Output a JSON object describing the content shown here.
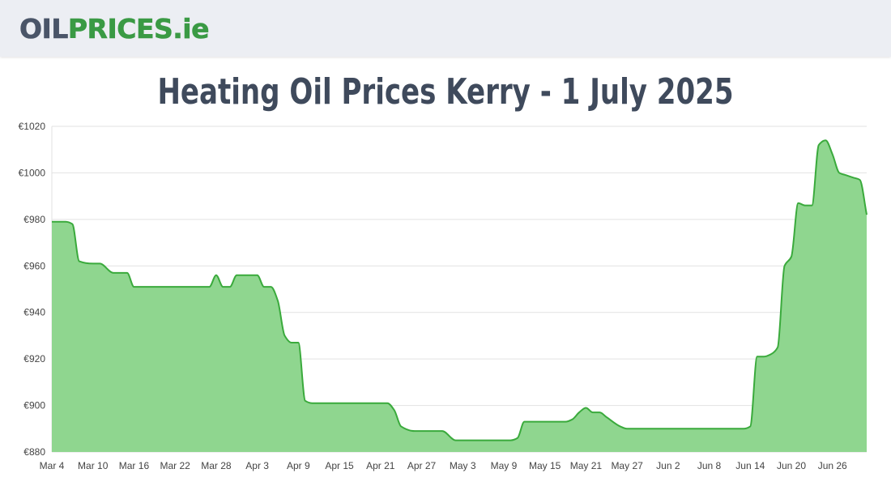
{
  "header": {
    "logo_part1": "OIL",
    "logo_part2": "PRICES",
    "logo_part3": ".ie"
  },
  "page_title": "Heating Oil Prices Kerry - 1 July 2025",
  "colors": {
    "line": "#3aaa3c",
    "fill": "#8fd68f",
    "grid": "#e2e2e2",
    "brand_gray": "#4a5568",
    "brand_green": "#3a9a44"
  },
  "chart_data": {
    "type": "area",
    "title": "Heating Oil Prices Kerry - 1 July 2025",
    "xlabel": "",
    "ylabel": "",
    "ylim": [
      880,
      1020
    ],
    "y_ticks": [
      880,
      900,
      920,
      940,
      960,
      980,
      1000,
      1020
    ],
    "y_tick_labels": [
      "€880",
      "€900",
      "€920",
      "€940",
      "€960",
      "€980",
      "€1000",
      "€1020"
    ],
    "x_ticks": [
      "Mar 4",
      "Mar 10",
      "Mar 16",
      "Mar 22",
      "Mar 28",
      "Apr 3",
      "Apr 9",
      "Apr 15",
      "Apr 21",
      "Apr 27",
      "May 3",
      "May 9",
      "May 15",
      "May 21",
      "May 27",
      "Jun 2",
      "Jun 8",
      "Jun 14",
      "Jun 20",
      "Jun 26"
    ],
    "grid": true,
    "series": [
      {
        "x": [
          "2025-03-04",
          "2025-03-05",
          "2025-03-06",
          "2025-03-07",
          "2025-03-08",
          "2025-03-10",
          "2025-03-11",
          "2025-03-13",
          "2025-03-14",
          "2025-03-15",
          "2025-03-16",
          "2025-03-20",
          "2025-03-25",
          "2025-03-27",
          "2025-03-28",
          "2025-03-29",
          "2025-03-30",
          "2025-03-31",
          "2025-04-01",
          "2025-04-03",
          "2025-04-04",
          "2025-04-05",
          "2025-04-06",
          "2025-04-07",
          "2025-04-08",
          "2025-04-09",
          "2025-04-10",
          "2025-04-11",
          "2025-04-13",
          "2025-04-15",
          "2025-04-20",
          "2025-04-22",
          "2025-04-23",
          "2025-04-24",
          "2025-04-26",
          "2025-04-28",
          "2025-04-29",
          "2025-04-30",
          "2025-05-02",
          "2025-05-03",
          "2025-05-05",
          "2025-05-10",
          "2025-05-11",
          "2025-05-12",
          "2025-05-13",
          "2025-05-15",
          "2025-05-18",
          "2025-05-19",
          "2025-05-20",
          "2025-05-21",
          "2025-05-22",
          "2025-05-23",
          "2025-05-24",
          "2025-05-26",
          "2025-05-27",
          "2025-06-02",
          "2025-06-10",
          "2025-06-12",
          "2025-06-13",
          "2025-06-14",
          "2025-06-15",
          "2025-06-16",
          "2025-06-17",
          "2025-06-18",
          "2025-06-19",
          "2025-06-20",
          "2025-06-21",
          "2025-06-22",
          "2025-06-23",
          "2025-06-24",
          "2025-06-25",
          "2025-06-26",
          "2025-06-27",
          "2025-06-28",
          "2025-06-29",
          "2025-06-30",
          "2025-07-01"
        ],
        "y": [
          979,
          979,
          979,
          978,
          962,
          961,
          961,
          957,
          957,
          957,
          951,
          951,
          951,
          951,
          956,
          951,
          951,
          956,
          956,
          956,
          951,
          951,
          945,
          930,
          927,
          927,
          902,
          901,
          901,
          901,
          901,
          901,
          898,
          891,
          889,
          889,
          889,
          889,
          885,
          885,
          885,
          885,
          886,
          893,
          893,
          893,
          893,
          894,
          897,
          899,
          897,
          897,
          895,
          891,
          890,
          890,
          890,
          890,
          890,
          891,
          921,
          921,
          922,
          925,
          960,
          964,
          987,
          986,
          986,
          1012,
          1014,
          1008,
          1000,
          999,
          998,
          997,
          982
        ]
      }
    ]
  }
}
